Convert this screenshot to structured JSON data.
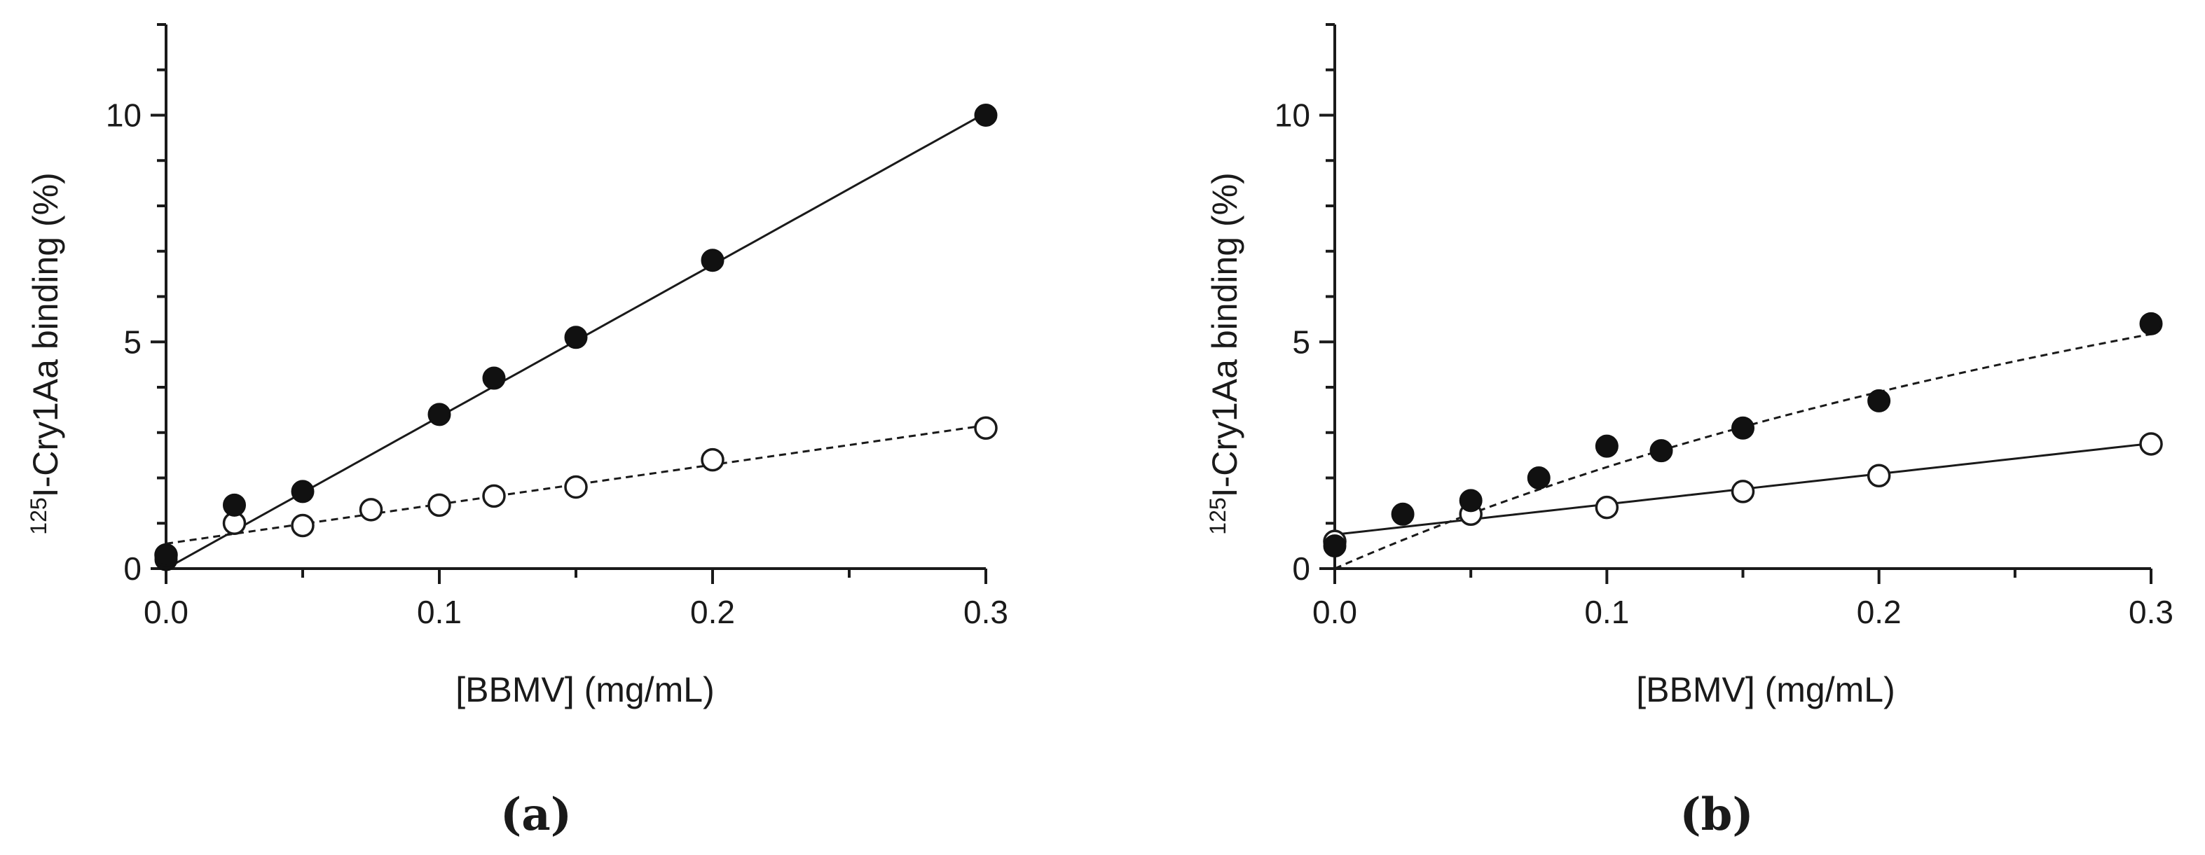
{
  "chart_data": [
    {
      "type": "scatter",
      "panel_label": "(a)",
      "xlabel": "[BBMV] (mg/mL)",
      "ylabel": {
        "superscript": "125",
        "text": "I-Cry1Aa binding (%)"
      },
      "xlim": [
        0,
        0.3
      ],
      "ylim": [
        0,
        12
      ],
      "xticks": [
        "0.0",
        "0.1",
        "0.2",
        "0.3"
      ],
      "yticks": [
        "0",
        "5",
        "10"
      ],
      "series": [
        {
          "name": "filled",
          "marker": "filled-circle",
          "x": [
            0,
            0,
            0.025,
            0.05,
            0.1,
            0.12,
            0.15,
            0.2,
            0.3
          ],
          "y": [
            0.2,
            0.3,
            1.4,
            1.7,
            3.4,
            4.2,
            5.1,
            6.8,
            10.0
          ],
          "fit": {
            "kind": "linear",
            "intercept": 0.0,
            "slope": 33.5,
            "style": "solid"
          }
        },
        {
          "name": "open",
          "marker": "open-circle",
          "x": [
            0,
            0.025,
            0.05,
            0.075,
            0.1,
            0.12,
            0.15,
            0.2,
            0.3
          ],
          "y": [
            0.3,
            1.0,
            0.95,
            1.3,
            1.4,
            1.6,
            1.8,
            2.4,
            3.1
          ],
          "fit": {
            "kind": "linear",
            "intercept": 0.55,
            "slope": 8.7,
            "style": "dashed"
          }
        }
      ]
    },
    {
      "type": "scatter",
      "panel_label": "(b)",
      "xlabel": "[BBMV] (mg/mL)",
      "ylabel": {
        "superscript": "125",
        "text": "I-Cry1Aa binding (%)"
      },
      "xlim": [
        0,
        0.3
      ],
      "ylim": [
        0,
        12
      ],
      "xticks": [
        "0.0",
        "0.1",
        "0.2",
        "0.3"
      ],
      "yticks": [
        "0",
        "5",
        "10"
      ],
      "series": [
        {
          "name": "filled",
          "marker": "filled-circle",
          "x": [
            0,
            0.025,
            0.05,
            0.075,
            0.1,
            0.12,
            0.15,
            0.2,
            0.3
          ],
          "y": [
            0.5,
            1.2,
            1.5,
            2.0,
            2.7,
            2.6,
            3.1,
            3.7,
            5.4
          ],
          "fit": {
            "kind": "saturation",
            "bmax": 15.0,
            "kd": 0.57,
            "style": "dashed"
          }
        },
        {
          "name": "open",
          "marker": "open-circle",
          "x": [
            0,
            0.05,
            0.1,
            0.15,
            0.2,
            0.3
          ],
          "y": [
            0.6,
            1.2,
            1.35,
            1.7,
            2.05,
            2.75
          ],
          "fit": {
            "kind": "linear",
            "intercept": 0.75,
            "slope": 6.7,
            "style": "solid"
          }
        }
      ]
    }
  ]
}
